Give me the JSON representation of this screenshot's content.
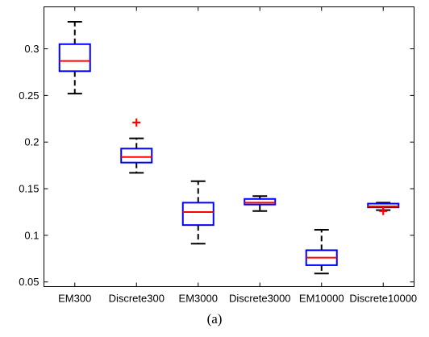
{
  "chart_data": {
    "type": "box",
    "categories": [
      "EM300",
      "Discrete300",
      "EM3000",
      "Discrete3000",
      "EM10000",
      "Discrete10000"
    ],
    "boxes": [
      {
        "q1": 0.276,
        "median": 0.287,
        "q3": 0.305,
        "whisker_low": 0.252,
        "whisker_high": 0.329,
        "outliers": []
      },
      {
        "q1": 0.178,
        "median": 0.184,
        "q3": 0.193,
        "whisker_low": 0.167,
        "whisker_high": 0.204,
        "outliers": [
          0.221
        ]
      },
      {
        "q1": 0.111,
        "median": 0.125,
        "q3": 0.135,
        "whisker_low": 0.091,
        "whisker_high": 0.158,
        "outliers": []
      },
      {
        "q1": 0.133,
        "median": 0.135,
        "q3": 0.139,
        "whisker_low": 0.126,
        "whisker_high": 0.142,
        "outliers": []
      },
      {
        "q1": 0.068,
        "median": 0.076,
        "q3": 0.084,
        "whisker_low": 0.059,
        "whisker_high": 0.106,
        "outliers": []
      },
      {
        "q1": 0.13,
        "median": 0.131,
        "q3": 0.134,
        "whisker_low": 0.127,
        "whisker_high": 0.135,
        "outliers": [
          0.126
        ]
      }
    ],
    "y_ticks": [
      0.05,
      0.1,
      0.15,
      0.2,
      0.25,
      0.3
    ],
    "y_tick_labels": [
      "0.05",
      "0.1",
      "0.15",
      "0.2",
      "0.25",
      "0.3"
    ],
    "ylim": [
      0.045,
      0.345
    ],
    "grid": false,
    "colors": {
      "box": "#0000ff",
      "median": "#ff0000",
      "whisker": "#000000",
      "outlier": "#ff0000"
    }
  },
  "caption": "(a)"
}
